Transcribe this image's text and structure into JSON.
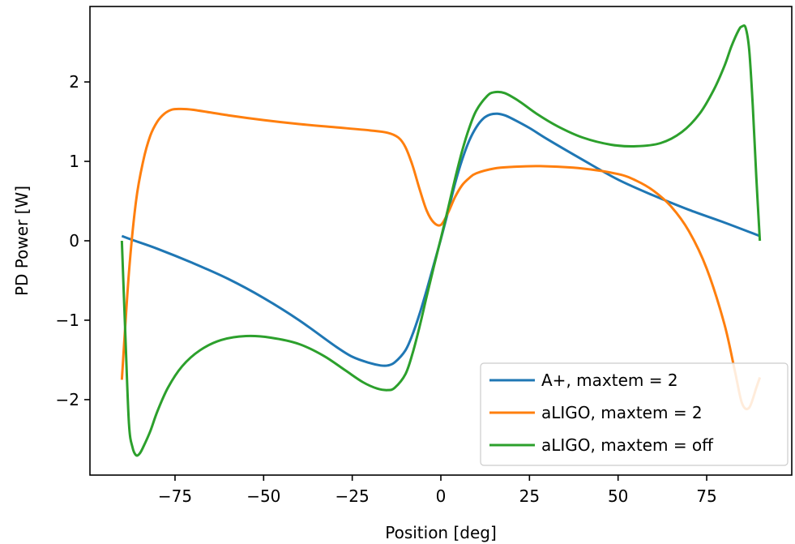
{
  "chart_data": {
    "type": "line",
    "title": "",
    "xlabel": "Position [deg]",
    "ylabel": "PD Power [W]",
    "xlim": [
      -99,
      99
    ],
    "ylim": [
      -2.95,
      2.95
    ],
    "xticks": [
      -75,
      -50,
      -25,
      0,
      25,
      50,
      75
    ],
    "xtick_labels": [
      "−75",
      "−50",
      "−25",
      "0",
      "25",
      "50",
      "75"
    ],
    "yticks": [
      -2,
      -1,
      0,
      1,
      2
    ],
    "ytick_labels": [
      "−2",
      "−1",
      "0",
      "1",
      "2"
    ],
    "grid": false,
    "legend_position": "lower right",
    "series": [
      {
        "name": "A+, maxtem = 2",
        "color": "#1f77b4",
        "x": [
          -90,
          -87,
          -80,
          -70,
          -60,
          -50,
          -40,
          -30,
          -25,
          -20,
          -17,
          -15,
          -13,
          -10,
          -8,
          -6,
          -4,
          -2,
          0,
          2,
          4,
          6,
          8,
          10,
          12,
          14,
          16,
          18,
          20,
          25,
          30,
          40,
          50,
          60,
          70,
          80,
          90
        ],
        "y": [
          0.06,
          0.01,
          -0.1,
          -0.28,
          -0.48,
          -0.72,
          -1.0,
          -1.32,
          -1.46,
          -1.54,
          -1.57,
          -1.57,
          -1.53,
          -1.38,
          -1.18,
          -0.92,
          -0.62,
          -0.3,
          0.02,
          0.36,
          0.72,
          1.02,
          1.26,
          1.43,
          1.54,
          1.59,
          1.6,
          1.58,
          1.54,
          1.42,
          1.28,
          1.02,
          0.77,
          0.57,
          0.39,
          0.23,
          0.06
        ]
      },
      {
        "name": "aLIGO, maxtem = 2",
        "color": "#ff7f0e",
        "x": [
          -90,
          -88,
          -86,
          -84,
          -82,
          -80,
          -78,
          -76,
          -74,
          -70,
          -60,
          -50,
          -40,
          -30,
          -20,
          -15,
          -12,
          -10,
          -8,
          -6,
          -4,
          -2,
          0,
          2,
          4,
          6,
          8,
          10,
          15,
          20,
          28,
          40,
          50,
          55,
          60,
          65,
          70,
          75,
          80,
          83,
          85,
          87,
          89,
          90
        ],
        "y": [
          -1.75,
          -0.4,
          0.5,
          1.0,
          1.32,
          1.5,
          1.6,
          1.65,
          1.66,
          1.65,
          1.58,
          1.52,
          1.47,
          1.43,
          1.39,
          1.36,
          1.3,
          1.18,
          0.95,
          0.65,
          0.38,
          0.23,
          0.2,
          0.35,
          0.55,
          0.7,
          0.79,
          0.85,
          0.91,
          0.93,
          0.94,
          0.91,
          0.84,
          0.76,
          0.63,
          0.43,
          0.12,
          -0.35,
          -1.05,
          -1.65,
          -2.05,
          -2.1,
          -1.85,
          -1.72
        ]
      },
      {
        "name": "aLIGO, maxtem = off",
        "color": "#2ca02c",
        "x": [
          -90,
          -89,
          -88,
          -87,
          -86,
          -85,
          -84,
          -82,
          -80,
          -77,
          -73,
          -68,
          -62,
          -55,
          -48,
          -40,
          -33,
          -27,
          -22,
          -18,
          -15,
          -13,
          -10,
          -8,
          -6,
          -4,
          -2,
          0,
          2,
          4,
          6,
          8,
          10,
          13,
          15,
          18,
          22,
          27,
          33,
          40,
          48,
          55,
          62,
          68,
          73,
          77,
          80,
          82,
          84,
          85,
          86,
          87,
          88,
          89,
          90
        ],
        "y": [
          0.0,
          -1.2,
          -2.3,
          -2.6,
          -2.7,
          -2.68,
          -2.6,
          -2.4,
          -2.15,
          -1.85,
          -1.58,
          -1.38,
          -1.25,
          -1.2,
          -1.22,
          -1.3,
          -1.45,
          -1.63,
          -1.78,
          -1.86,
          -1.88,
          -1.85,
          -1.68,
          -1.42,
          -1.08,
          -0.7,
          -0.33,
          0.03,
          0.4,
          0.78,
          1.13,
          1.42,
          1.64,
          1.82,
          1.87,
          1.86,
          1.76,
          1.6,
          1.44,
          1.3,
          1.21,
          1.19,
          1.23,
          1.37,
          1.6,
          1.9,
          2.2,
          2.45,
          2.65,
          2.7,
          2.68,
          2.4,
          1.7,
          0.8,
          0.0
        ]
      }
    ]
  }
}
